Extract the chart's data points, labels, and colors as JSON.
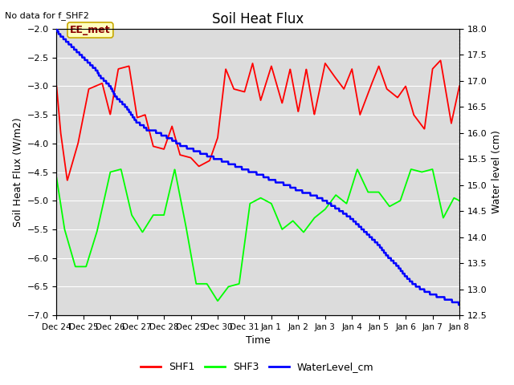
{
  "title": "Soil Heat Flux",
  "subtitle": "No data for f_SHF2",
  "ylabel_left": "Soil Heat Flux (W/m2)",
  "ylabel_right": "Water level (cm)",
  "xlabel": "Time",
  "ylim_left": [
    -7.0,
    -2.0
  ],
  "ylim_right": [
    12.5,
    18.0
  ],
  "background_color": "#dcdcdc",
  "annotation_text": "EE_met",
  "annotation_bg": "#ffffc0",
  "annotation_edge": "#c8a800",
  "xtick_labels": [
    "Dec 24",
    "Dec 25",
    "Dec 26",
    "Dec 27",
    "Dec 28",
    "Dec 29",
    "Dec 30",
    "Dec 31",
    "Jan 1",
    "Jan 2",
    "Jan 3",
    "Jan 4",
    "Jan 5",
    "Jan 6",
    "Jan 7",
    "Jan 8"
  ],
  "shf1_color": "red",
  "shf3_color": "lime",
  "water_color": "blue",
  "shf1_kx": [
    0,
    0.15,
    0.4,
    0.8,
    1.2,
    1.7,
    2.0,
    2.3,
    2.7,
    3.0,
    3.3,
    3.6,
    4.0,
    4.3,
    4.6,
    5.0,
    5.3,
    5.7,
    6.0,
    6.3,
    6.6,
    7.0,
    7.3,
    7.6,
    8.0,
    8.4,
    8.7,
    9.0,
    9.3,
    9.6,
    10.0,
    10.3,
    10.7,
    11.0,
    11.3,
    11.7,
    12.0,
    12.3,
    12.7,
    13.0,
    13.3,
    13.7,
    14.0,
    14.3,
    14.7,
    15.0
  ],
  "shf1_ky": [
    -3.0,
    -3.8,
    -4.65,
    -4.0,
    -3.05,
    -2.95,
    -3.5,
    -2.7,
    -2.65,
    -3.55,
    -3.5,
    -4.05,
    -4.1,
    -3.7,
    -4.2,
    -4.25,
    -4.4,
    -4.3,
    -3.9,
    -2.7,
    -3.05,
    -3.1,
    -2.6,
    -3.25,
    -2.65,
    -3.3,
    -2.7,
    -3.45,
    -2.7,
    -3.5,
    -2.6,
    -2.8,
    -3.05,
    -2.7,
    -3.5,
    -3.0,
    -2.65,
    -3.05,
    -3.2,
    -3.0,
    -3.5,
    -3.75,
    -2.7,
    -2.55,
    -3.65,
    -3.0
  ],
  "shf3_kx": [
    0,
    0.3,
    0.7,
    1.1,
    1.5,
    2.0,
    2.4,
    2.8,
    3.2,
    3.6,
    4.0,
    4.4,
    4.8,
    5.2,
    5.6,
    6.0,
    6.4,
    6.8,
    7.2,
    7.6,
    8.0,
    8.4,
    8.8,
    9.2,
    9.6,
    10.0,
    10.4,
    10.8,
    11.2,
    11.6,
    12.0,
    12.4,
    12.8,
    13.2,
    13.6,
    14.0,
    14.4,
    14.8,
    15.0
  ],
  "shf3_ky": [
    -4.6,
    -5.5,
    -6.15,
    -6.15,
    -5.55,
    -4.5,
    -4.45,
    -5.25,
    -5.55,
    -5.25,
    -5.25,
    -4.45,
    -5.4,
    -6.45,
    -6.45,
    -6.75,
    -6.5,
    -6.45,
    -5.05,
    -4.95,
    -5.05,
    -5.5,
    -5.35,
    -5.55,
    -5.3,
    -5.15,
    -4.9,
    -5.05,
    -4.45,
    -4.85,
    -4.85,
    -5.1,
    -5.0,
    -4.45,
    -4.5,
    -4.45,
    -5.3,
    -4.95,
    -5.0
  ],
  "water_kx": [
    0,
    0.1,
    0.2,
    0.3,
    0.4,
    0.5,
    0.6,
    0.7,
    0.8,
    0.9,
    1.0,
    1.1,
    1.2,
    1.3,
    1.4,
    1.5,
    1.6,
    1.7,
    1.8,
    1.9,
    2.0,
    2.2,
    2.4,
    2.6,
    2.8,
    3.0,
    3.2,
    3.4,
    3.6,
    3.8,
    4.0,
    4.2,
    4.4,
    4.5,
    4.7,
    5.0,
    5.2,
    5.5,
    5.7,
    6.0,
    6.3,
    6.5,
    6.8,
    7.0,
    7.3,
    7.6,
    7.8,
    8.0,
    8.3,
    8.6,
    8.8,
    9.0,
    9.3,
    9.6,
    9.8,
    10.0,
    10.3,
    10.6,
    11.0,
    11.3,
    11.6,
    12.0,
    12.3,
    12.7,
    13.0,
    13.3,
    13.6,
    14.0,
    14.3,
    14.6,
    15.0
  ],
  "water_ky": [
    18.0,
    17.9,
    17.85,
    17.8,
    17.75,
    17.7,
    17.65,
    17.6,
    17.55,
    17.5,
    17.45,
    17.4,
    17.35,
    17.3,
    17.25,
    17.2,
    17.1,
    17.05,
    17.0,
    16.95,
    16.9,
    16.7,
    16.6,
    16.5,
    16.35,
    16.2,
    16.15,
    16.05,
    16.05,
    16.0,
    15.95,
    15.9,
    15.85,
    15.8,
    15.75,
    15.7,
    15.65,
    15.6,
    15.55,
    15.5,
    15.45,
    15.4,
    15.35,
    15.3,
    15.25,
    15.2,
    15.15,
    15.1,
    15.05,
    15.0,
    14.95,
    14.9,
    14.85,
    14.8,
    14.75,
    14.7,
    14.6,
    14.5,
    14.35,
    14.2,
    14.05,
    13.85,
    13.65,
    13.45,
    13.25,
    13.1,
    13.0,
    12.9,
    12.85,
    12.8,
    12.72
  ]
}
